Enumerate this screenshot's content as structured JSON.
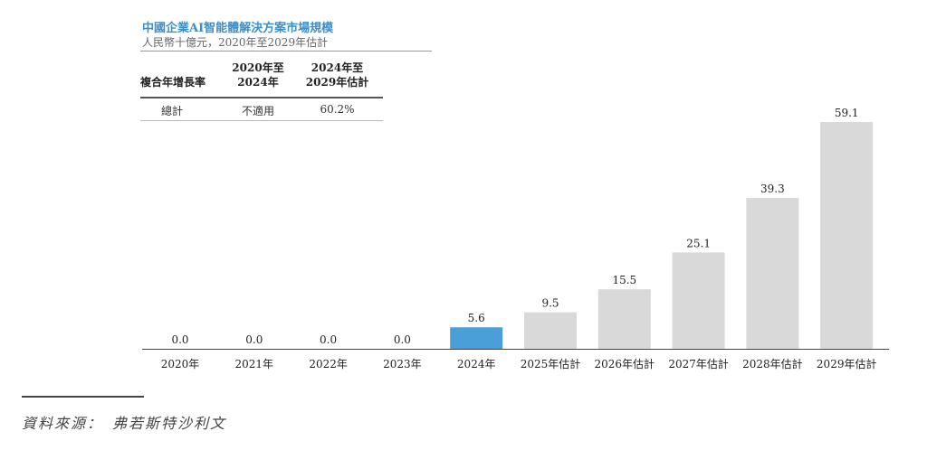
{
  "title": "中國企業AI智能體解決方案市場規模",
  "subtitle": "人民幣十億元，2020年至2029年估計",
  "cagr_table": {
    "headers": [
      "複合年增長率",
      "2020年至\n2024年",
      "2024年至\n2029年估計"
    ],
    "header_lines": [
      [
        "2020年至",
        "2024年"
      ],
      [
        "2024年至",
        "2029年估計"
      ]
    ],
    "row": [
      "總計",
      "不適用",
      "60.2%"
    ]
  },
  "chart_data": {
    "type": "bar",
    "title": "中國企業AI智能體解決方案市場規模",
    "subtitle": "人民幣十億元，2020年至2029年估計",
    "categories": [
      "2020年",
      "2021年",
      "2022年",
      "2023年",
      "2024年",
      "2025年估計",
      "2026年估計",
      "2027年估計",
      "2028年估計",
      "2029年估計"
    ],
    "values": [
      0.0,
      0.0,
      0.0,
      0.0,
      5.6,
      9.5,
      15.5,
      25.1,
      39.3,
      59.1
    ],
    "data_labels": [
      "0.0",
      "0.0",
      "0.0",
      "0.0",
      "5.6",
      "9.5",
      "15.5",
      "25.1",
      "39.3",
      "59.1"
    ],
    "highlight_index": 4,
    "colors": {
      "highlight": "#4a9fd8",
      "default": "#d9d9d9",
      "title": "#3a8fc8"
    },
    "grid": false
  },
  "source": "資料來源：　弗若斯特沙利文"
}
